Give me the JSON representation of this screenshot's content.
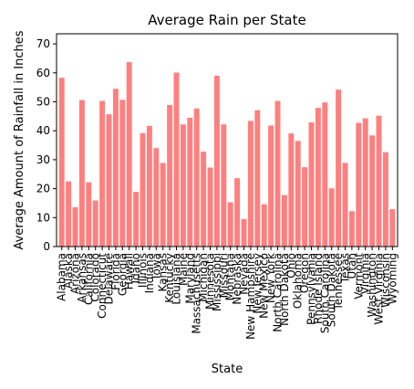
{
  "chart_data": {
    "type": "bar",
    "title": "Average Rain per State",
    "xlabel": "State",
    "ylabel": "Average Amount of Rainfall in Inches",
    "ylim": [
      0,
      73.5
    ],
    "yticks": [
      0,
      10,
      20,
      30,
      40,
      50,
      60,
      70
    ],
    "grid": false,
    "bar_color": "#ff7f7f",
    "categories": [
      "Alabama",
      "Alaska",
      "Arizona",
      "Arkansas",
      "California",
      "Colorado",
      "Connecticut",
      "Delaware",
      "Florida",
      "Georgia",
      "Hawaii",
      "Idaho",
      "Illinois",
      "Indiana",
      "Iowa",
      "Kansas",
      "Kentucky",
      "Louisiana",
      "Maine",
      "Maryland",
      "Massachusetts",
      "Michigan",
      "Minnesota",
      "Mississippi",
      "Missouri",
      "Montana",
      "Nebraska",
      "Nevada",
      "New Hampshire",
      "New Jersey",
      "New Mexico",
      "New York",
      "North Carolina",
      "North Dakota",
      "Ohio",
      "Oklahoma",
      "Oregon",
      "Pennsylvania",
      "Rhode Island",
      "South Carolina",
      "South Dakota",
      "Tennessee",
      "Texas",
      "Utah",
      "Vermont",
      "Virginia",
      "Washington",
      "West Virginia",
      "Wisconsin",
      "Wyoming"
    ],
    "values": [
      58.3,
      22.5,
      13.6,
      50.6,
      22.2,
      15.9,
      50.3,
      45.7,
      54.5,
      50.7,
      63.7,
      18.9,
      39.2,
      41.7,
      34.0,
      28.9,
      48.9,
      60.1,
      42.2,
      44.5,
      47.7,
      32.8,
      27.3,
      59.0,
      42.2,
      15.3,
      23.6,
      9.5,
      43.4,
      47.1,
      14.6,
      41.8,
      50.3,
      17.8,
      39.1,
      36.5,
      27.4,
      42.9,
      47.9,
      49.8,
      20.1,
      54.2,
      28.9,
      12.2,
      42.7,
      44.3,
      38.4,
      45.2,
      32.6,
      12.9
    ]
  }
}
